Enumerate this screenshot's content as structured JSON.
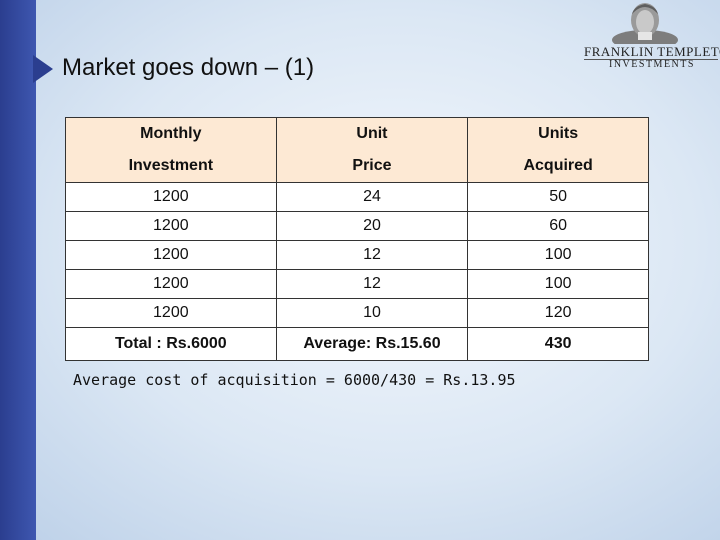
{
  "slide": {
    "title": "Market goes down – (1)"
  },
  "logo": {
    "brand": "FRANKLIN TEMPLETON",
    "sub": "INVESTMENTS"
  },
  "table": {
    "headers": [
      [
        "Monthly",
        "Investment"
      ],
      [
        "Unit",
        "Price"
      ],
      [
        "Units",
        "Acquired"
      ]
    ],
    "rows": [
      [
        "1200",
        "24",
        "50"
      ],
      [
        "1200",
        "20",
        "60"
      ],
      [
        "1200",
        "12",
        "100"
      ],
      [
        "1200",
        "12",
        "100"
      ],
      [
        "1200",
        "10",
        "120"
      ]
    ],
    "total": [
      "Total : Rs.6000",
      "Average:  Rs.15.60",
      "430"
    ]
  },
  "note": "Average cost of acquisition = 6000/430 = Rs.13.95"
}
